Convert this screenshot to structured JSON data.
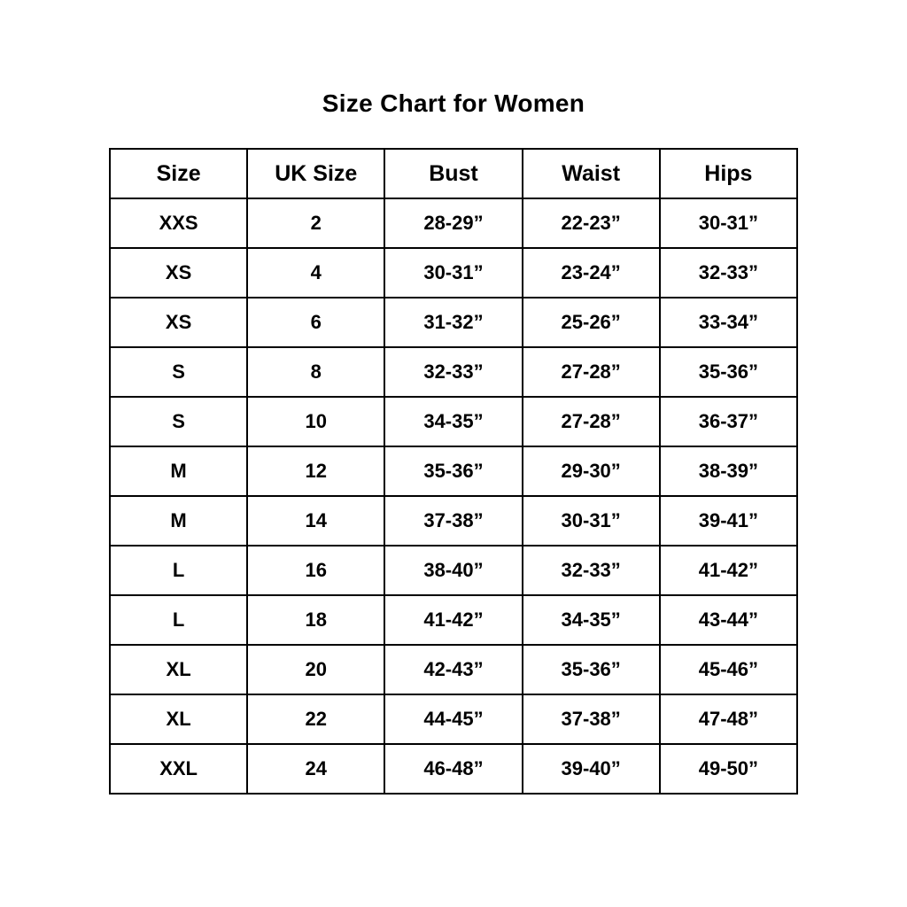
{
  "chart_data": {
    "type": "table",
    "title": "Size Chart for Women",
    "columns": [
      "Size",
      "UK Size",
      "Bust",
      "Waist",
      "Hips"
    ],
    "rows": [
      [
        "XXS",
        "2",
        "28-29”",
        "22-23”",
        "30-31”"
      ],
      [
        "XS",
        "4",
        "30-31”",
        "23-24”",
        "32-33”"
      ],
      [
        "XS",
        "6",
        "31-32”",
        "25-26”",
        "33-34”"
      ],
      [
        "S",
        "8",
        "32-33”",
        "27-28”",
        "35-36”"
      ],
      [
        "S",
        "10",
        "34-35”",
        "27-28”",
        "36-37”"
      ],
      [
        "M",
        "12",
        "35-36”",
        "29-30”",
        "38-39”"
      ],
      [
        "M",
        "14",
        "37-38”",
        "30-31”",
        "39-41”"
      ],
      [
        "L",
        "16",
        "38-40”",
        "32-33”",
        "41-42”"
      ],
      [
        "L",
        "18",
        "41-42”",
        "34-35”",
        "43-44”"
      ],
      [
        "XL",
        "20",
        "42-43”",
        "35-36”",
        "45-46”"
      ],
      [
        "XL",
        "22",
        "44-45”",
        "37-38”",
        "47-48”"
      ],
      [
        "XXL",
        "24",
        "46-48”",
        "39-40”",
        "49-50”"
      ]
    ],
    "layout": {
      "grid": "all-borders",
      "border_color": "#000000",
      "background": "#ffffff",
      "text_color": "#000000"
    }
  }
}
